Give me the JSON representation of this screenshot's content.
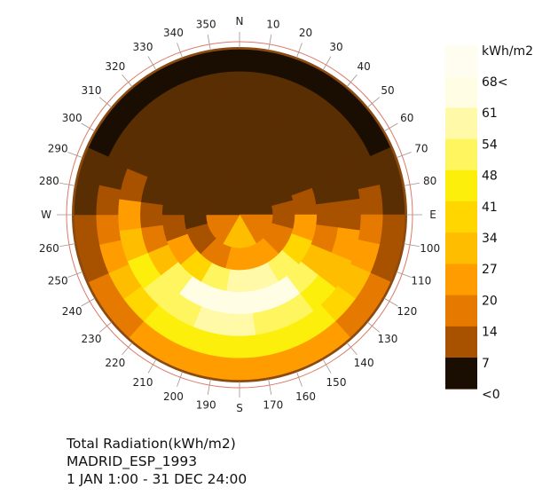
{
  "chart_data": {
    "type": "heatmap",
    "projection": "polar sky dome",
    "title_lines": [
      "Total Radiation(kWh/m2)",
      "MADRID_ESP_1993",
      "1 JAN 1:00 - 31 DEC 24:00"
    ],
    "unit": "kWh/m2",
    "compass_labels": {
      "N": "N",
      "E": "E",
      "S": "S",
      "W": "W"
    },
    "angle_ticks": [
      {
        "deg": 10,
        "label": "10"
      },
      {
        "deg": 20,
        "label": "20"
      },
      {
        "deg": 30,
        "label": "30"
      },
      {
        "deg": 40,
        "label": "40"
      },
      {
        "deg": 50,
        "label": "50"
      },
      {
        "deg": 60,
        "label": "60"
      },
      {
        "deg": 70,
        "label": "70"
      },
      {
        "deg": 80,
        "label": "80"
      },
      {
        "deg": 100,
        "label": "100"
      },
      {
        "deg": 110,
        "label": "110"
      },
      {
        "deg": 120,
        "label": "120"
      },
      {
        "deg": 130,
        "label": "130"
      },
      {
        "deg": 140,
        "label": "140"
      },
      {
        "deg": 150,
        "label": "150"
      },
      {
        "deg": 160,
        "label": "160"
      },
      {
        "deg": 170,
        "label": "170"
      },
      {
        "deg": 190,
        "label": "190"
      },
      {
        "deg": 200,
        "label": "200"
      },
      {
        "deg": 210,
        "label": "210"
      },
      {
        "deg": 220,
        "label": "220"
      },
      {
        "deg": 230,
        "label": "230"
      },
      {
        "deg": 240,
        "label": "240"
      },
      {
        "deg": 250,
        "label": "250"
      },
      {
        "deg": 260,
        "label": "260"
      },
      {
        "deg": 280,
        "label": "280"
      },
      {
        "deg": 290,
        "label": "290"
      },
      {
        "deg": 300,
        "label": "300"
      },
      {
        "deg": 310,
        "label": "310"
      },
      {
        "deg": 320,
        "label": "320"
      },
      {
        "deg": 330,
        "label": "330"
      },
      {
        "deg": 340,
        "label": "340"
      },
      {
        "deg": 350,
        "label": "350"
      }
    ],
    "legend": {
      "unit_label": "kWh/m2",
      "labels": [
        "68<",
        "61",
        "54",
        "48",
        "41",
        "34",
        "27",
        "20",
        "14",
        "7",
        "<0"
      ],
      "colors": [
        "#fffde3",
        "#fff9a8",
        "#fff55f",
        "#fcef0b",
        "#ffd600",
        "#ffbd00",
        "#ff9d00",
        "#e67a00",
        "#a85200",
        "#5a2e03",
        "#1a0e02"
      ]
    },
    "patches": {
      "band_altitudes_deg": [
        0,
        12,
        24,
        36,
        48,
        60,
        72,
        90
      ],
      "band_azimuth_counts": [
        30,
        30,
        24,
        24,
        18,
        12,
        6,
        1
      ],
      "values_by_band": [
        [
          6,
          6,
          6,
          6,
          6,
          6,
          8,
          11,
          15,
          19,
          22,
          26,
          29,
          31,
          32,
          33,
          32,
          31,
          29,
          26,
          22,
          19,
          15,
          11,
          8,
          6,
          6,
          6,
          6,
          6
        ],
        [
          7,
          7,
          7,
          7,
          7,
          8,
          11,
          15,
          21,
          30,
          37,
          44,
          49,
          52,
          53,
          53,
          53,
          52,
          49,
          44,
          37,
          30,
          21,
          15,
          11,
          8,
          7,
          7,
          7,
          7
        ],
        [
          8,
          8,
          8,
          8,
          8,
          12,
          18,
          27,
          40,
          51,
          57,
          60,
          61,
          61,
          60,
          57,
          51,
          40,
          27,
          18,
          12,
          8,
          8,
          8
        ],
        [
          9,
          9,
          9,
          9,
          9,
          12,
          16,
          22,
          37,
          54,
          68,
          72,
          73,
          72,
          68,
          54,
          37,
          22,
          16,
          12,
          9,
          9,
          9,
          9
        ],
        [
          10,
          10,
          10,
          10,
          16,
          29,
          45,
          57,
          64,
          64,
          57,
          45,
          29,
          16,
          10,
          10,
          10,
          10
        ],
        [
          11,
          11,
          11,
          15,
          23,
          33,
          33,
          23,
          15,
          11,
          11,
          11
        ],
        [
          12,
          12,
          20,
          38,
          20,
          12
        ],
        [
          14
        ]
      ]
    }
  }
}
